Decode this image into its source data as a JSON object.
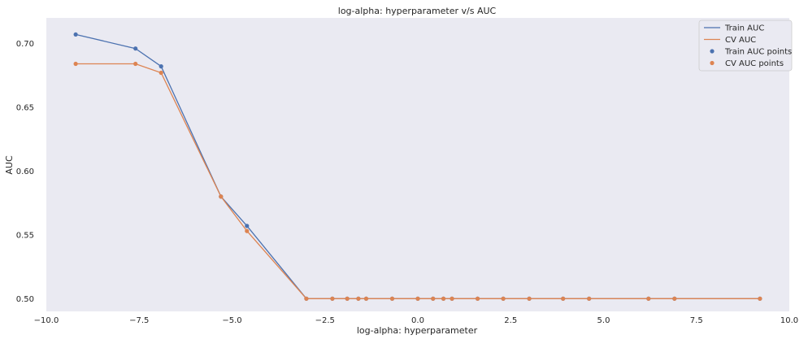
{
  "chart_data": {
    "type": "line",
    "title": "log-alpha: hyperparameter v/s AUC",
    "xlabel": "log-alpha: hyperparameter",
    "ylabel": "AUC",
    "xlim": [
      -10.0,
      10.0
    ],
    "ylim": [
      0.49,
      0.72
    ],
    "xticks": [
      -10.0,
      -7.5,
      -5.0,
      -2.5,
      0.0,
      2.5,
      5.0,
      7.5,
      10.0
    ],
    "xtick_labels": [
      "−10.0",
      "−7.5",
      "−5.0",
      "−2.5",
      "0.0",
      "2.5",
      "5.0",
      "7.5",
      "10.0"
    ],
    "yticks": [
      0.5,
      0.55,
      0.6,
      0.65,
      0.7
    ],
    "ytick_labels": [
      "0.50",
      "0.55",
      "0.60",
      "0.65",
      "0.70"
    ],
    "grid": false,
    "legend_position": "top-right",
    "x": [
      -9.21,
      -7.6,
      -6.91,
      -5.3,
      -4.6,
      -3.0,
      -2.3,
      -1.9,
      -1.6,
      -1.39,
      -0.69,
      0.0,
      0.41,
      0.69,
      0.92,
      1.61,
      2.3,
      3.0,
      3.91,
      4.61,
      6.21,
      6.91,
      9.21
    ],
    "series": [
      {
        "name": "Train AUC",
        "points_label": "Train AUC points",
        "color": "#4c72b0",
        "values": [
          0.707,
          0.696,
          0.682,
          0.58,
          0.557,
          0.5,
          0.5,
          0.5,
          0.5,
          0.5,
          0.5,
          0.5,
          0.5,
          0.5,
          0.5,
          0.5,
          0.5,
          0.5,
          0.5,
          0.5,
          0.5,
          0.5,
          0.5
        ]
      },
      {
        "name": "CV AUC",
        "points_label": "CV AUC points",
        "color": "#dd8452",
        "values": [
          0.684,
          0.684,
          0.677,
          0.58,
          0.553,
          0.5,
          0.5,
          0.5,
          0.5,
          0.5,
          0.5,
          0.5,
          0.5,
          0.5,
          0.5,
          0.5,
          0.5,
          0.5,
          0.5,
          0.5,
          0.5,
          0.5,
          0.5
        ]
      }
    ],
    "colors": {
      "plot_background": "#eaeaf2",
      "page_background": "#ffffff"
    }
  }
}
